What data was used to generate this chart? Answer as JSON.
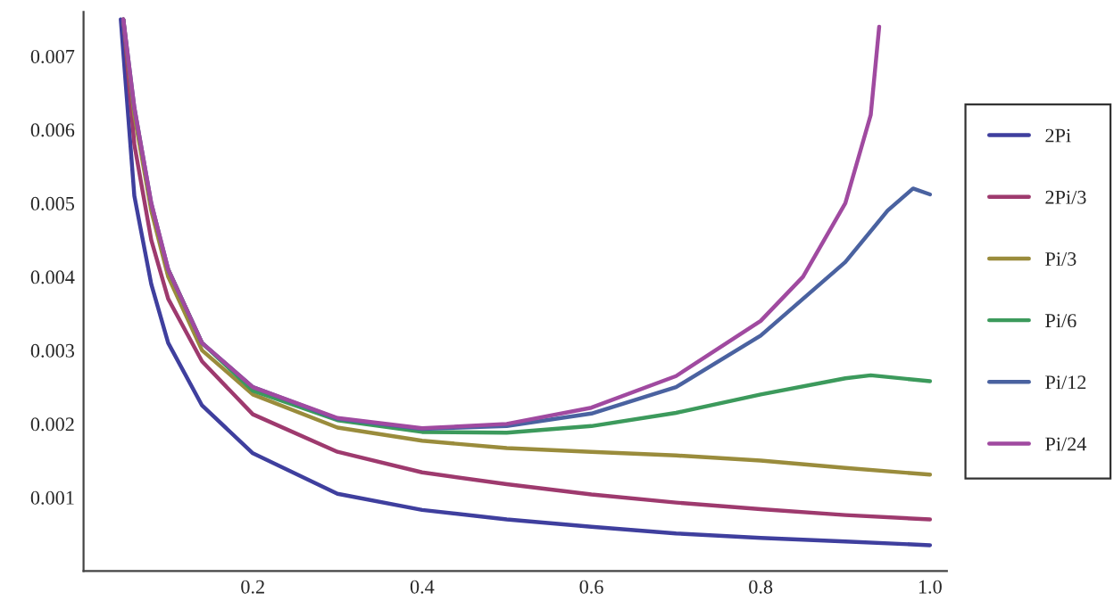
{
  "chart_data": {
    "type": "line",
    "xlim": [
      0,
      1.02
    ],
    "ylim": [
      0,
      0.0076
    ],
    "xticks": [
      0.2,
      0.4,
      0.6,
      0.8,
      {
        "value": 1.0,
        "label": "1.0"
      }
    ],
    "yticks": [
      0.001,
      0.002,
      0.003,
      0.004,
      0.005,
      0.006,
      0.007
    ],
    "grid": false,
    "legend": "right",
    "marker": "none",
    "line_style": "solid",
    "series": [
      {
        "name": "2Pi",
        "color": "#3f3f9e",
        "x": [
          0.044,
          0.06,
          0.08,
          0.1,
          0.14,
          0.2,
          0.3,
          0.4,
          0.5,
          0.6,
          0.7,
          0.8,
          0.9,
          1.0
        ],
        "values": [
          0.0075,
          0.0051,
          0.0039,
          0.0031,
          0.00225,
          0.0016,
          0.00105,
          0.00083,
          0.0007,
          0.0006,
          0.00051,
          0.00045,
          0.0004,
          0.00035
        ]
      },
      {
        "name": "2Pi/3",
        "color": "#9e3a6e",
        "x": [
          0.047,
          0.06,
          0.08,
          0.1,
          0.14,
          0.2,
          0.3,
          0.4,
          0.5,
          0.6,
          0.7,
          0.8,
          0.9,
          1.0
        ],
        "values": [
          0.0075,
          0.0058,
          0.0045,
          0.0037,
          0.00285,
          0.00213,
          0.00162,
          0.00134,
          0.00118,
          0.00104,
          0.00093,
          0.00084,
          0.00076,
          0.0007
        ]
      },
      {
        "name": "Pi/3",
        "color": "#9a8c3c",
        "x": [
          0.047,
          0.06,
          0.08,
          0.1,
          0.14,
          0.2,
          0.3,
          0.4,
          0.5,
          0.6,
          0.7,
          0.8,
          0.9,
          1.0
        ],
        "values": [
          0.0075,
          0.0062,
          0.0049,
          0.004,
          0.003,
          0.0024,
          0.00195,
          0.00177,
          0.00167,
          0.00162,
          0.00157,
          0.0015,
          0.0014,
          0.00131
        ]
      },
      {
        "name": "Pi/6",
        "color": "#3c9a5c",
        "x": [
          0.1,
          0.14,
          0.2,
          0.3,
          0.4,
          0.5,
          0.6,
          0.7,
          0.8,
          0.9,
          0.93,
          1.0
        ],
        "values": [
          0.0041,
          0.0031,
          0.00245,
          0.00205,
          0.00189,
          0.00188,
          0.00197,
          0.00215,
          0.0024,
          0.00262,
          0.00266,
          0.00258
        ]
      },
      {
        "name": "Pi/12",
        "color": "#4a62a0",
        "x": [
          0.047,
          0.06,
          0.08,
          0.1,
          0.14,
          0.2,
          0.3,
          0.4,
          0.5,
          0.6,
          0.7,
          0.8,
          0.9,
          0.95,
          0.98,
          1.0
        ],
        "values": [
          0.0075,
          0.0063,
          0.005,
          0.0041,
          0.0031,
          0.0025,
          0.00207,
          0.00193,
          0.00197,
          0.00214,
          0.0025,
          0.0032,
          0.0042,
          0.0049,
          0.0052,
          0.00512
        ]
      },
      {
        "name": "Pi/24",
        "color": "#a04aa0",
        "x": [
          0.047,
          0.06,
          0.08,
          0.1,
          0.14,
          0.2,
          0.3,
          0.4,
          0.5,
          0.6,
          0.7,
          0.8,
          0.85,
          0.9,
          0.93,
          0.94
        ],
        "values": [
          0.0075,
          0.0063,
          0.005,
          0.0041,
          0.0031,
          0.0025,
          0.00208,
          0.00194,
          0.002,
          0.00222,
          0.00265,
          0.0034,
          0.004,
          0.005,
          0.0062,
          0.0074
        ]
      }
    ]
  }
}
